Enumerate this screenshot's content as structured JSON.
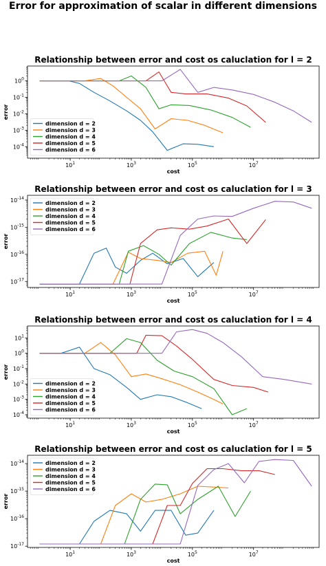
{
  "figure": {
    "title": "Error for approximation of scalar in different dimensions",
    "colors": {
      "dimension d = 2": "#1f77b4",
      "dimension d = 3": "#ff7f0e",
      "dimension d = 4": "#2ca02c",
      "dimension d = 5": "#d62728",
      "dimension d = 6": "#9467bd"
    }
  },
  "chart_data": [
    {
      "type": "line",
      "title": "Relationship  between error and cost os caluclation for l =  2",
      "xlabel": "cost",
      "ylabel": "error",
      "xscale": "log",
      "yscale": "log",
      "xlim": [
        0.4,
        1400000000.0
      ],
      "ylim": [
        2e-05,
        8
      ],
      "xticks": [
        "10^1",
        "10^3",
        "10^5",
        "10^7"
      ],
      "yticks": [
        "10^0",
        "10^-1",
        "10^-2",
        "10^-3",
        "10^-4"
      ],
      "legend_position": "lower-left",
      "series": [
        {
          "name": "dimension d = 2",
          "x": [
            1,
            3,
            9,
            20,
            60,
            200,
            700,
            2000,
            5000,
            15000,
            50000,
            150000,
            500000
          ],
          "y": [
            1,
            1,
            1,
            0.7,
            0.2,
            0.06,
            0.015,
            0.004,
            0.0008,
            6e-05,
            0.00015,
            0.00014,
            0.0001
          ]
        },
        {
          "name": "dimension d = 3",
          "x": [
            1,
            5,
            30,
            100,
            250,
            700,
            2000,
            6000,
            20000,
            70000,
            250000,
            1000000
          ],
          "y": [
            1,
            1,
            1,
            1.4,
            0.5,
            0.1,
            0.02,
            0.0012,
            0.005,
            0.004,
            0.002,
            0.0007
          ]
        },
        {
          "name": "dimension d = 4",
          "x": [
            1,
            10,
            100,
            400,
            1000,
            3000,
            8000,
            20000,
            80000,
            400000,
            2000000,
            8000000
          ],
          "y": [
            1,
            1,
            1,
            1,
            2,
            0.4,
            0.02,
            0.035,
            0.032,
            0.017,
            0.006,
            0.0015
          ]
        },
        {
          "name": "dimension d = 5",
          "x": [
            1,
            10,
            100,
            1000,
            3000,
            8000,
            20000,
            60000,
            300000,
            1500000,
            6000000,
            25000000
          ],
          "y": [
            1,
            1,
            1,
            1,
            1,
            3.5,
            0.2,
            0.16,
            0.16,
            0.09,
            0.03,
            0.003
          ]
        },
        {
          "name": "dimension d = 6",
          "x": [
            1,
            10,
            100,
            1000,
            10000,
            40000,
            150000,
            500000,
            2000000,
            10000000,
            50000000,
            200000000,
            800000000
          ],
          "y": [
            1,
            1,
            1,
            1,
            1,
            5,
            0.2,
            0.4,
            0.28,
            0.15,
            0.05,
            0.015,
            0.003
          ]
        }
      ]
    },
    {
      "type": "line",
      "title": "Relationship  between error and cost os caluclation for l =  3",
      "xlabel": "cost",
      "ylabel": "error",
      "xscale": "log",
      "yscale": "log",
      "xlim": [
        0.4,
        1400000000.0
      ],
      "ylim": [
        6e-18,
        1.5e-14
      ],
      "xticks": [
        "10^1",
        "10^3",
        "10^5",
        "10^7"
      ],
      "yticks": [
        "10^-14",
        "10^-15",
        "10^-16",
        "10^-17"
      ],
      "legend_position": "upper-left",
      "series": [
        {
          "name": "dimension d = 2",
          "x": [
            1,
            20,
            60,
            150,
            300,
            700,
            2000,
            5000,
            15000,
            50000,
            150000,
            500000
          ],
          "y": [
            8e-18,
            8e-18,
            1.1e-16,
            1.7e-16,
            3.4e-17,
            2e-17,
            6e-17,
            1.1e-16,
            4.5e-17,
            7e-17,
            1.5e-17,
            5e-17
          ]
        },
        {
          "name": "dimension d = 3",
          "x": [
            1,
            250,
            800,
            2000,
            7000,
            20000,
            70000,
            250000,
            600000,
            1000000
          ],
          "y": [
            8e-18,
            8e-18,
            1.2e-16,
            7e-17,
            6e-17,
            5e-17,
            1.1e-16,
            1.3e-16,
            1.7e-17,
            1.3e-16
          ]
        },
        {
          "name": "dimension d = 4",
          "x": [
            1,
            400,
            800,
            2500,
            8000,
            20000,
            80000,
            400000,
            2000000,
            6000000
          ],
          "y": [
            8e-18,
            8e-18,
            1.3e-16,
            2.1e-16,
            1e-16,
            4e-17,
            2.5e-16,
            6.5e-16,
            4e-16,
            3.5e-16
          ]
        },
        {
          "name": "dimension d = 5",
          "x": [
            1,
            900,
            2000,
            7000,
            20000,
            80000,
            300000,
            1500000,
            6000000,
            25000000
          ],
          "y": [
            8e-18,
            8e-18,
            2.5e-16,
            8e-16,
            9.5e-16,
            8.5e-16,
            1.1e-15,
            2e-15,
            2.5e-16,
            1.9e-15
          ]
        },
        {
          "name": "dimension d = 6",
          "x": [
            1,
            10000,
            40000,
            150000,
            500000,
            2000000,
            10000000,
            50000000,
            200000000,
            800000000
          ],
          "y": [
            8e-18,
            8e-18,
            5e-16,
            2e-15,
            2.6e-15,
            2.5e-15,
            5e-15,
            9e-15,
            8.5e-15,
            5e-15
          ]
        }
      ]
    },
    {
      "type": "line",
      "title": "Relationship  between error and cost os caluclation for l =  4",
      "xlabel": "cost",
      "ylabel": "error",
      "xscale": "log",
      "yscale": "log",
      "xlim": [
        0.4,
        1400000000.0
      ],
      "ylim": [
        6e-05,
        60
      ],
      "xticks": [
        "10^1",
        "10^3",
        "10^5",
        "10^7"
      ],
      "yticks": [
        "10^1",
        "10^0",
        "10^-1",
        "10^-2",
        "10^-3",
        "10^-4"
      ],
      "legend_position": "lower-left",
      "series": [
        {
          "name": "dimension d = 2",
          "x": [
            1,
            5,
            20,
            60,
            200,
            700,
            2000,
            7000,
            20000,
            70000,
            200000
          ],
          "y": [
            1,
            1,
            2.5,
            0.1,
            0.04,
            0.006,
            0.001,
            0.002,
            0.0015,
            0.0006,
            0.00025
          ]
        },
        {
          "name": "dimension d = 3",
          "x": [
            1,
            30,
            100,
            300,
            1000,
            3000,
            10000,
            40000,
            150000,
            500000,
            1000000
          ],
          "y": [
            1,
            1,
            5,
            0.8,
            0.03,
            0.045,
            0.022,
            0.009,
            0.003,
            0.001,
            0.0005
          ]
        },
        {
          "name": "dimension d = 4",
          "x": [
            1,
            200,
            700,
            2000,
            7000,
            25000,
            100000,
            500000,
            2000000,
            6000000
          ],
          "y": [
            1,
            1,
            9,
            5,
            0.35,
            0.07,
            0.03,
            0.005,
            0.0001,
            0.00025
          ]
        },
        {
          "name": "dimension d = 5",
          "x": [
            1,
            1500,
            3000,
            10000,
            30000,
            100000,
            500000,
            2000000,
            10000000,
            30000000
          ],
          "y": [
            1,
            1,
            15,
            14,
            3,
            0.4,
            0.02,
            0.008,
            0.006,
            0.003
          ]
        },
        {
          "name": "dimension d = 6",
          "x": [
            1,
            10000,
            30000,
            100000,
            300000,
            1000000,
            4000000,
            20000000,
            100000000,
            800000000
          ],
          "y": [
            1,
            1,
            25,
            35,
            20,
            5,
            0.6,
            0.03,
            0.02,
            0.01
          ]
        }
      ]
    },
    {
      "type": "line",
      "title": "Relationship  between error and cost os caluclation for l =  5",
      "xlabel": "cost",
      "ylabel": "error",
      "xscale": "log",
      "yscale": "log",
      "xlim": [
        0.4,
        1400000000.0
      ],
      "ylim": [
        9e-18,
        2e-14
      ],
      "xticks": [
        "10^1",
        "10^3",
        "10^5",
        "10^7"
      ],
      "yticks": [
        "10^-14",
        "10^-15",
        "10^-16",
        "10^-17"
      ],
      "legend_position": "upper-left",
      "series": [
        {
          "name": "dimension d = 2",
          "x": [
            1,
            20,
            60,
            200,
            700,
            2000,
            6000,
            20000,
            60000,
            150000,
            500000
          ],
          "y": [
            1.2e-17,
            1.2e-17,
            8e-17,
            2e-16,
            1.5e-16,
            3.5e-17,
            2e-16,
            2e-16,
            2.5e-17,
            3e-17,
            2e-16
          ]
        },
        {
          "name": "dimension d = 3",
          "x": [
            1,
            100,
            300,
            1000,
            3000,
            10000,
            40000,
            150000,
            500000,
            1500000
          ],
          "y": [
            1.2e-17,
            1.2e-17,
            3e-16,
            8e-16,
            4e-16,
            5e-16,
            8e-16,
            1.5e-15,
            1.4e-15,
            1.3e-15
          ]
        },
        {
          "name": "dimension d = 4",
          "x": [
            1,
            600,
            2000,
            6000,
            15000,
            40000,
            150000,
            700000,
            2500000,
            8000000
          ],
          "y": [
            1.2e-17,
            1.2e-17,
            5e-16,
            1.8e-15,
            1.7e-15,
            1.5e-16,
            5e-16,
            1.5e-15,
            1.2e-16,
            1e-15
          ]
        },
        {
          "name": "dimension d = 5",
          "x": [
            1,
            5000,
            15000,
            40000,
            100000,
            300000,
            1000000,
            4000000,
            15000000,
            50000000
          ],
          "y": [
            1.2e-17,
            1.2e-17,
            3e-16,
            3e-16,
            1.9e-15,
            6.5e-15,
            6.5e-15,
            5.5e-15,
            5.5e-15,
            4e-15
          ]
        },
        {
          "name": "dimension d = 6",
          "x": [
            1,
            40000,
            150000,
            500000,
            1500000,
            5000000,
            15000000,
            50000000,
            200000000,
            800000000
          ],
          "y": [
            1.2e-17,
            1.2e-17,
            1.6e-15,
            6e-15,
            1e-14,
            2e-15,
            1.2e-14,
            1.4e-14,
            1.3e-14,
            1.5e-15
          ]
        }
      ]
    }
  ]
}
